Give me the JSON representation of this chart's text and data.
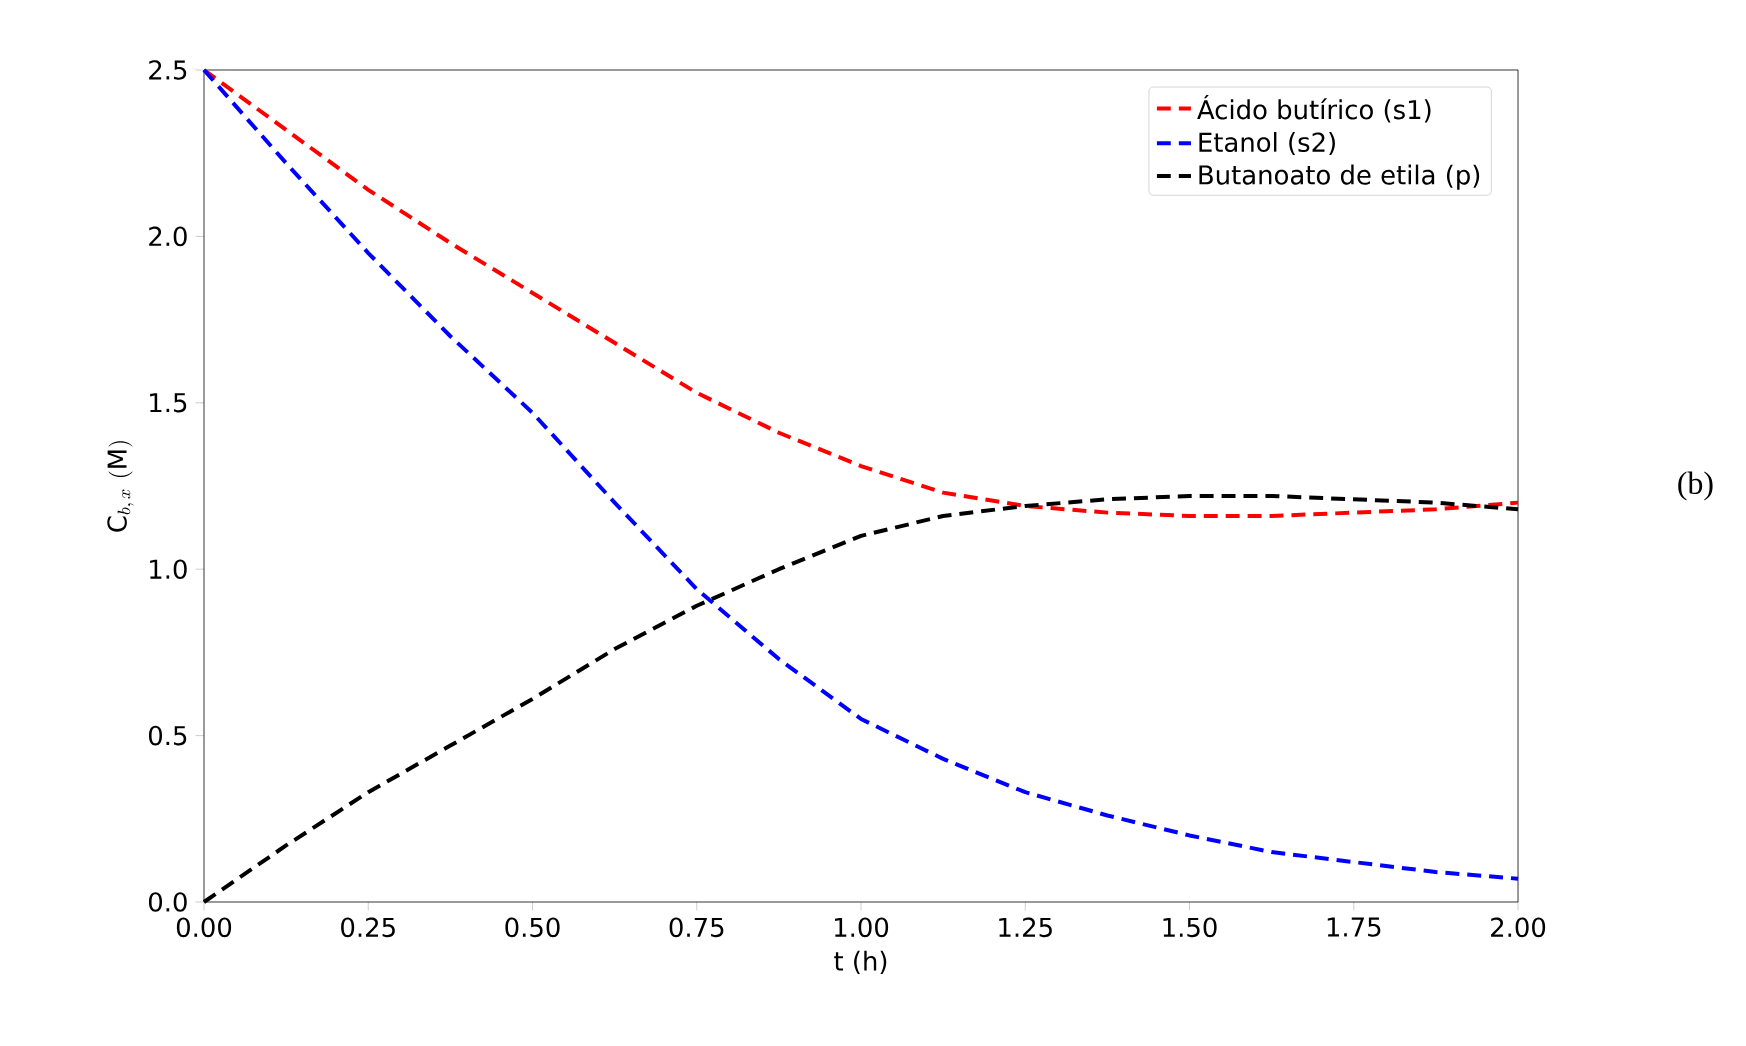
{
  "chart_data": {
    "type": "line",
    "xlabel": "t (h)",
    "ylabel": "\\mathrm{C}_{b,\\,x}\\ \\mathrm{(M)}",
    "x": [
      0,
      0.125,
      0.25,
      0.375,
      0.5,
      0.625,
      0.75,
      0.875,
      1.0,
      1.125,
      1.25,
      1.375,
      1.5,
      1.625,
      1.75,
      1.875,
      2.0
    ],
    "series": [
      {
        "name": "Ácido butírico (s1)",
        "color": "#ff0000",
        "values": [
          2.5,
          2.32,
          2.14,
          1.98,
          1.83,
          1.68,
          1.53,
          1.41,
          1.31,
          1.23,
          1.19,
          1.17,
          1.16,
          1.16,
          1.17,
          1.18,
          1.2
        ]
      },
      {
        "name": "Etanol (s2)",
        "color": "#0000ff",
        "values": [
          2.5,
          2.22,
          1.95,
          1.7,
          1.47,
          1.2,
          0.94,
          0.73,
          0.55,
          0.43,
          0.33,
          0.26,
          0.2,
          0.15,
          0.12,
          0.09,
          0.07
        ]
      },
      {
        "name": "Butanoato de etila (p)",
        "color": "#000000",
        "values": [
          0,
          0.17,
          0.33,
          0.47,
          0.61,
          0.76,
          0.89,
          1.0,
          1.1,
          1.16,
          1.19,
          1.21,
          1.22,
          1.22,
          1.21,
          1.2,
          1.18
        ]
      }
    ],
    "xlim": [
      0,
      2
    ],
    "ylim": [
      0,
      2.5
    ],
    "xticks": [
      {
        "value": 0,
        "label": "0.00"
      },
      {
        "value": 0.25,
        "label": "0.25"
      },
      {
        "value": 0.5,
        "label": "0.50"
      },
      {
        "value": 0.75,
        "label": "0.75"
      },
      {
        "value": 1,
        "label": "1.00"
      },
      {
        "value": 1.25,
        "label": "1.25"
      },
      {
        "value": 1.5,
        "label": "1.50"
      },
      {
        "value": 1.75,
        "label": "1.75"
      },
      {
        "value": 2,
        "label": "2.00"
      }
    ],
    "yticks": [
      {
        "value": 0,
        "label": "0.0"
      },
      {
        "value": 0.5,
        "label": "0.5"
      },
      {
        "value": 1,
        "label": "1.0"
      },
      {
        "value": 1.5,
        "label": "1.5"
      },
      {
        "value": 2,
        "label": "2.0"
      },
      {
        "value": 2.5,
        "label": "2.5"
      }
    ],
    "legend": "top right",
    "line_style": "dashed",
    "marker": "none",
    "annotations": [
      "(b)"
    ]
  }
}
